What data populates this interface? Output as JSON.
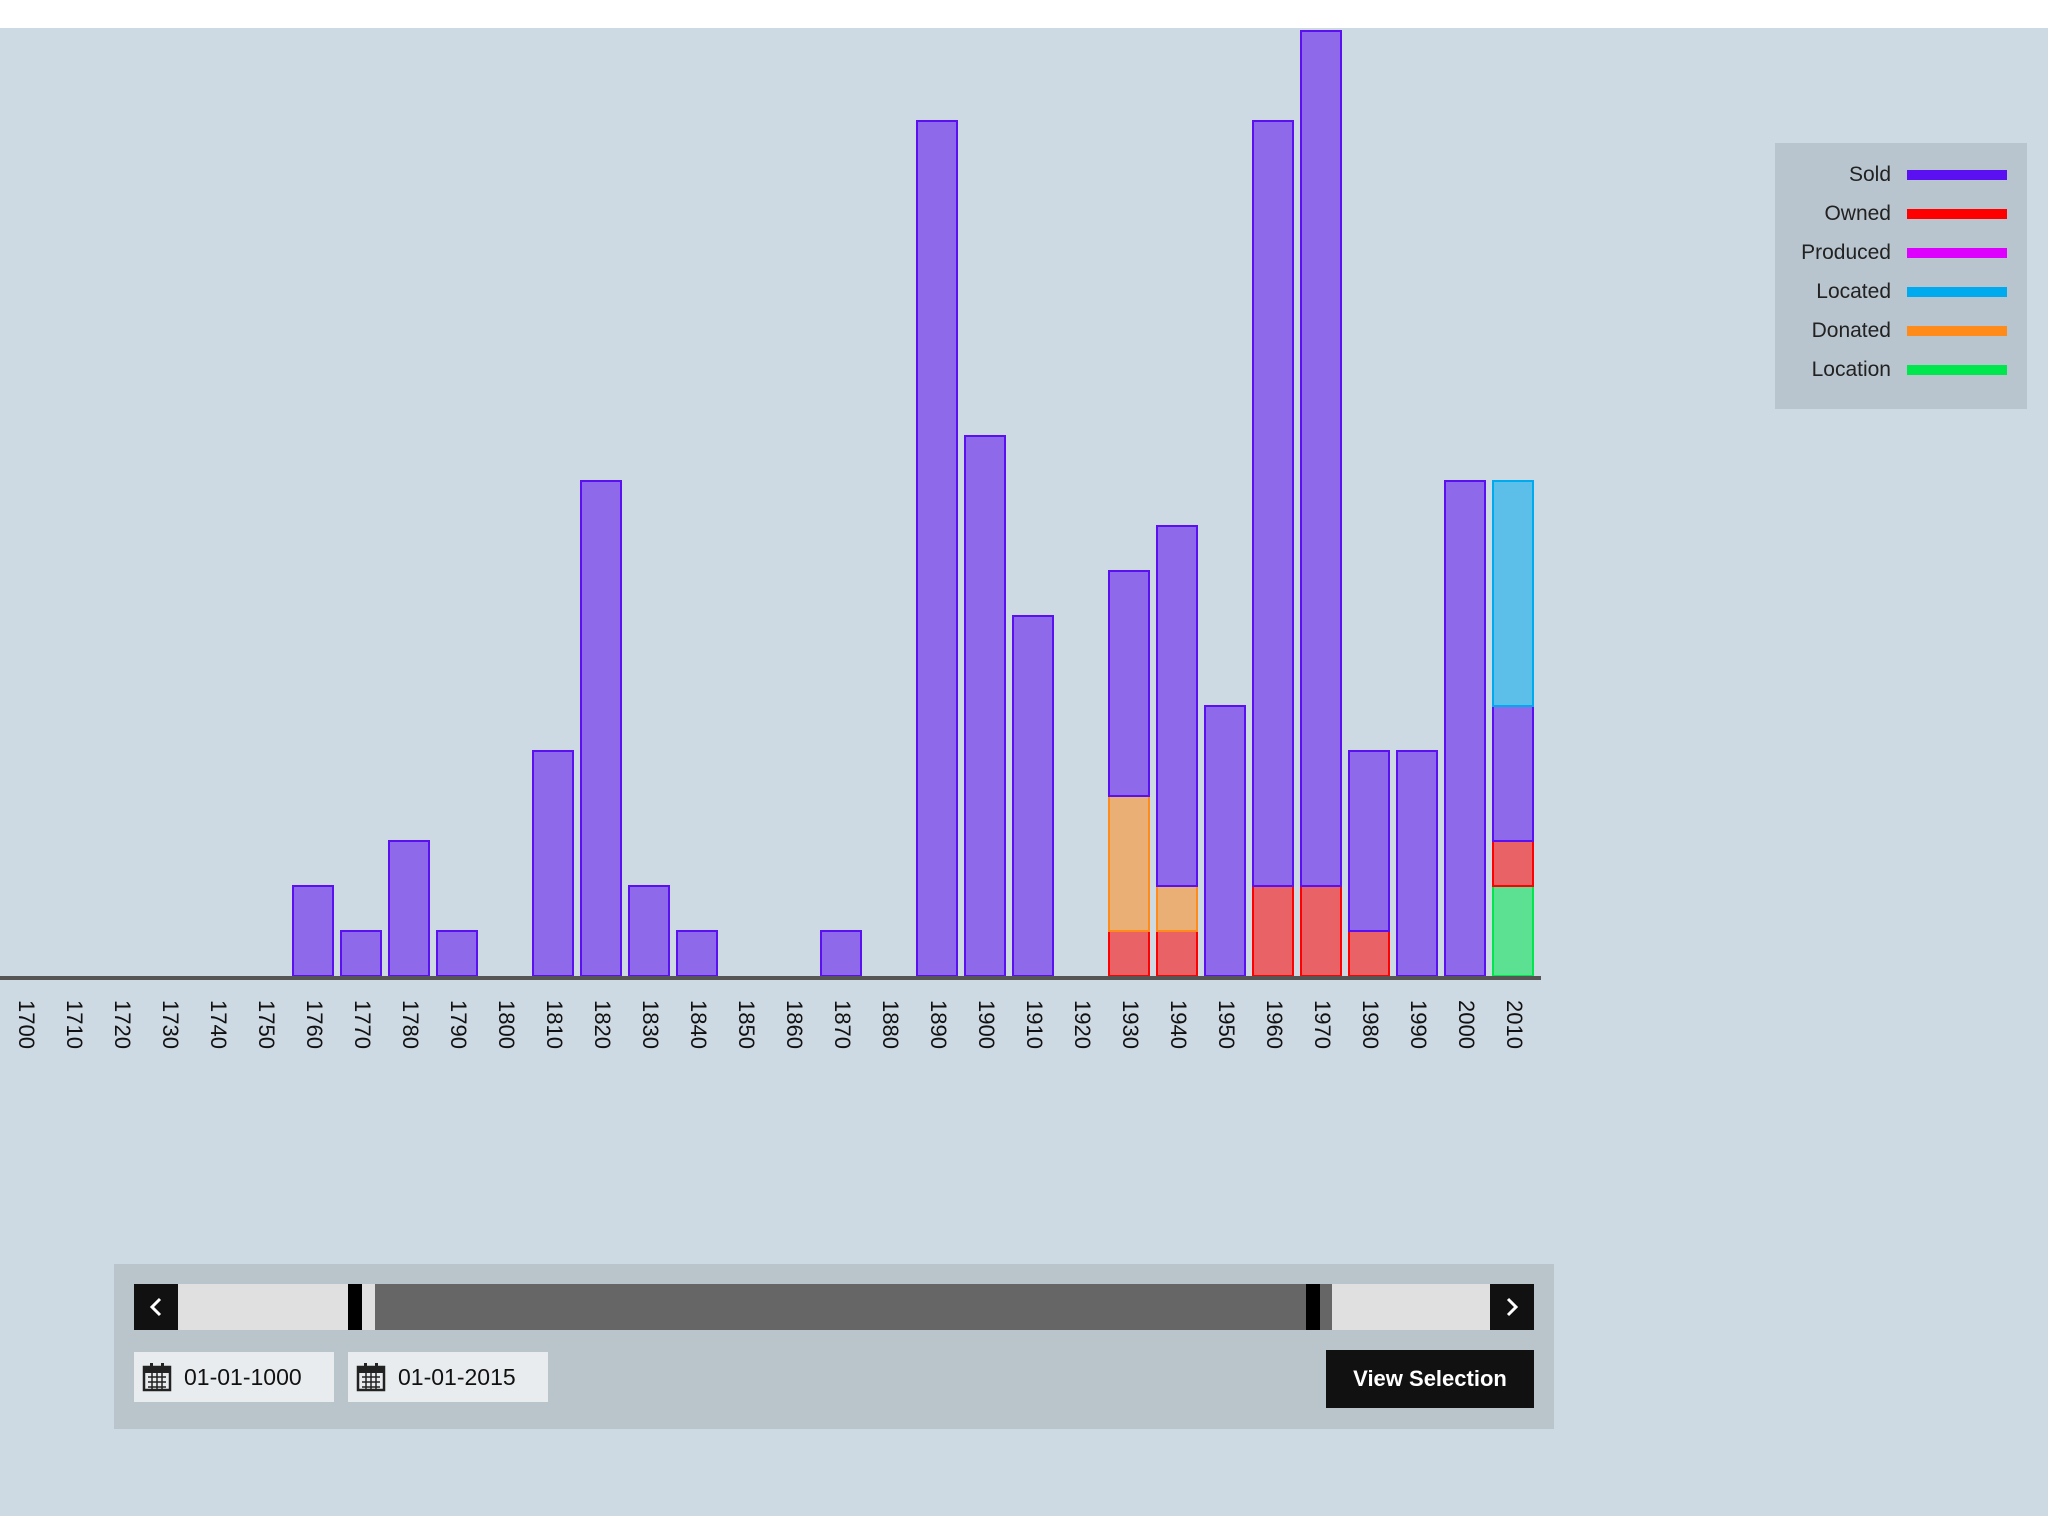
{
  "chart_data": {
    "type": "bar",
    "stacked": true,
    "categories": [
      "1700",
      "1710",
      "1720",
      "1730",
      "1740",
      "1750",
      "1760",
      "1770",
      "1780",
      "1790",
      "1800",
      "1810",
      "1820",
      "1830",
      "1840",
      "1850",
      "1860",
      "1870",
      "1880",
      "1890",
      "1900",
      "1910",
      "1920",
      "1930",
      "1940",
      "1950",
      "1960",
      "1970",
      "1980",
      "1990",
      "2000",
      "2010"
    ],
    "series": [
      {
        "name": "Location",
        "color": "#00e64d",
        "values": [
          0,
          0,
          0,
          0,
          0,
          0,
          0,
          0,
          0,
          0,
          0,
          0,
          0,
          0,
          0,
          0,
          0,
          0,
          0,
          0,
          0,
          0,
          0,
          0,
          0,
          0,
          0,
          0,
          0,
          0,
          0,
          2
        ]
      },
      {
        "name": "Owned",
        "color": "#ff0000",
        "values": [
          0,
          0,
          0,
          0,
          0,
          0,
          0,
          0,
          0,
          0,
          0,
          0,
          0,
          0,
          0,
          0,
          0,
          0,
          0,
          0,
          0,
          0,
          0,
          1,
          1,
          0,
          2,
          2,
          1,
          0,
          0,
          1
        ]
      },
      {
        "name": "Donated",
        "color": "#ff8c1a",
        "values": [
          0,
          0,
          0,
          0,
          0,
          0,
          0,
          0,
          0,
          0,
          0,
          0,
          0,
          0,
          0,
          0,
          0,
          0,
          0,
          0,
          0,
          0,
          0,
          3,
          1,
          0,
          0,
          0,
          0,
          0,
          0,
          0
        ]
      },
      {
        "name": "Sold",
        "color": "#5a10f0",
        "values": [
          0,
          0,
          0,
          0,
          0,
          0,
          2,
          1,
          3,
          1,
          0,
          5,
          11,
          2,
          1,
          0,
          0,
          1,
          0,
          19,
          12,
          8,
          0,
          5,
          8,
          6,
          17,
          19,
          4,
          5,
          11,
          3
        ]
      },
      {
        "name": "Located",
        "color": "#00aaee",
        "values": [
          0,
          0,
          0,
          0,
          0,
          0,
          0,
          0,
          0,
          0,
          0,
          0,
          0,
          0,
          0,
          0,
          0,
          0,
          0,
          0,
          0,
          0,
          0,
          0,
          0,
          0,
          0,
          0,
          0,
          0,
          0,
          5
        ]
      },
      {
        "name": "Produced",
        "color": "#dd00ff",
        "values": [
          0,
          0,
          0,
          0,
          0,
          0,
          0,
          0,
          0,
          0,
          0,
          0,
          0,
          0,
          0,
          0,
          0,
          0,
          0,
          0,
          0,
          0,
          0,
          0,
          0,
          0,
          0,
          0,
          0,
          0,
          0,
          0
        ]
      }
    ],
    "ylim": [
      0,
      21
    ],
    "legend_position": "top-right"
  },
  "legend": [
    {
      "label": "Sold",
      "color": "#5a10f0"
    },
    {
      "label": "Owned",
      "color": "#ff0000"
    },
    {
      "label": "Produced",
      "color": "#dd00ff"
    },
    {
      "label": "Located",
      "color": "#00aaee"
    },
    {
      "label": "Donated",
      "color": "#ff8c1a"
    },
    {
      "label": "Location",
      "color": "#00e64d"
    }
  ],
  "range_slider": {
    "start_date": "01-01-1000",
    "end_date": "01-01-2015",
    "prev_icon": "chevron-left-icon",
    "next_icon": "chevron-right-icon",
    "date_icon": "calendar-icon",
    "selection_start": 0.16,
    "selection_end": 0.85
  },
  "view_button_label": "View Selection"
}
